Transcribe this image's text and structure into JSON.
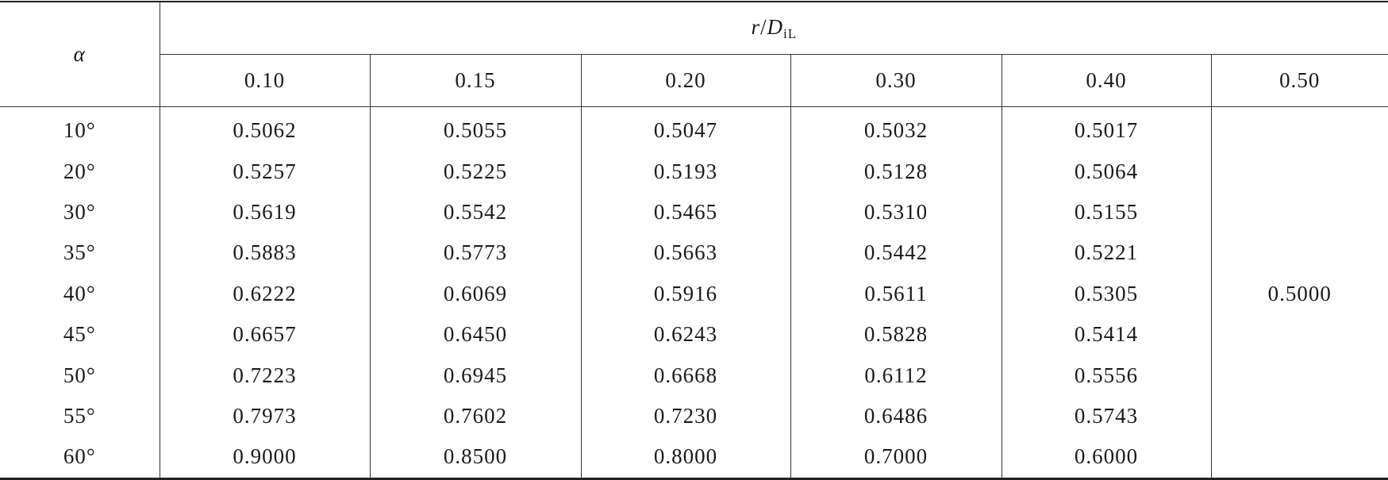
{
  "header": {
    "alpha": "α",
    "ratio_var": "r",
    "ratio_slash": "/",
    "ratio_d": "D",
    "ratio_sub": "iL"
  },
  "columns": [
    "0.10",
    "0.15",
    "0.20",
    "0.30",
    "0.40",
    "0.50"
  ],
  "rows": [
    {
      "label": "10°",
      "values": [
        "0.5062",
        "0.5055",
        "0.5047",
        "0.5032",
        "0.5017"
      ]
    },
    {
      "label": "20°",
      "values": [
        "0.5257",
        "0.5225",
        "0.5193",
        "0.5128",
        "0.5064"
      ]
    },
    {
      "label": "30°",
      "values": [
        "0.5619",
        "0.5542",
        "0.5465",
        "0.5310",
        "0.5155"
      ]
    },
    {
      "label": "35°",
      "values": [
        "0.5883",
        "0.5773",
        "0.5663",
        "0.5442",
        "0.5221"
      ]
    },
    {
      "label": "40°",
      "values": [
        "0.6222",
        "0.6069",
        "0.5916",
        "0.5611",
        "0.5305"
      ]
    },
    {
      "label": "45°",
      "values": [
        "0.6657",
        "0.6450",
        "0.6243",
        "0.5828",
        "0.5414"
      ]
    },
    {
      "label": "50°",
      "values": [
        "0.7223",
        "0.6945",
        "0.6668",
        "0.6112",
        "0.5556"
      ]
    },
    {
      "label": "55°",
      "values": [
        "0.7973",
        "0.7602",
        "0.7230",
        "0.6486",
        "0.5743"
      ]
    },
    {
      "label": "60°",
      "values": [
        "0.9000",
        "0.8500",
        "0.8000",
        "0.7000",
        "0.6000"
      ]
    }
  ],
  "merged_value": "0.5000"
}
